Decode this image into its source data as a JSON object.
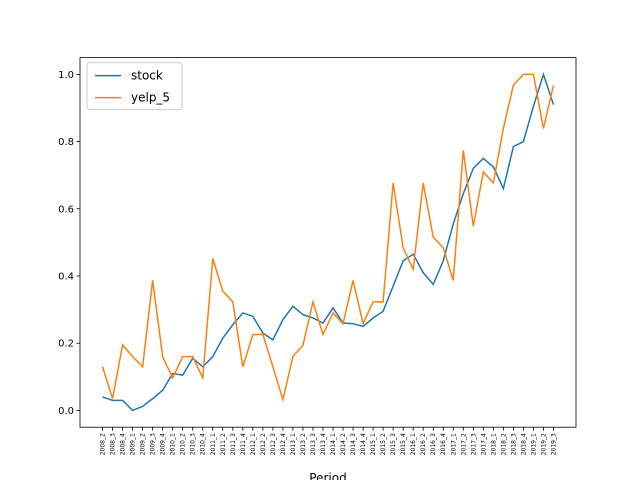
{
  "chart_data": {
    "type": "line",
    "xlabel": "Period",
    "categories": [
      "2008_2",
      "2008_3",
      "2008_4",
      "2009_1",
      "2009_2",
      "2009_3",
      "2009_4",
      "2010_1",
      "2010_2",
      "2010_3",
      "2010_4",
      "2011_1",
      "2011_2",
      "2011_3",
      "2011_4",
      "2012_1",
      "2012_2",
      "2012_3",
      "2012_4",
      "2013_1",
      "2013_2",
      "2013_3",
      "2013_4",
      "2014_1",
      "2014_2",
      "2014_3",
      "2014_4",
      "2015_1",
      "2015_2",
      "2015_3",
      "2015_4",
      "2016_1",
      "2016_2",
      "2016_3",
      "2016_4",
      "2017_1",
      "2017_2",
      "2017_3",
      "2017_4",
      "2018_1",
      "2018_2",
      "2018_3",
      "2018_4",
      "2019_1",
      "2019_2",
      "2019_3"
    ],
    "series": [
      {
        "name": "stock",
        "color": "#1f77b4",
        "values": [
          0.04,
          0.03,
          0.03,
          0.0,
          0.012,
          0.035,
          0.06,
          0.11,
          0.105,
          0.155,
          0.13,
          0.16,
          0.215,
          0.255,
          0.29,
          0.28,
          0.23,
          0.21,
          0.27,
          0.31,
          0.285,
          0.275,
          0.26,
          0.305,
          0.26,
          0.258,
          0.25,
          0.275,
          0.295,
          0.37,
          0.445,
          0.465,
          0.41,
          0.375,
          0.445,
          0.555,
          0.645,
          0.72,
          0.75,
          0.725,
          0.66,
          0.785,
          0.8,
          0.905,
          1.0,
          0.91
        ]
      },
      {
        "name": "yelp_5",
        "color": "#ff7f0e",
        "values": [
          0.13,
          0.035,
          0.195,
          0.16,
          0.13,
          0.387,
          0.16,
          0.097,
          0.16,
          0.16,
          0.097,
          0.452,
          0.355,
          0.323,
          0.13,
          0.226,
          0.226,
          0.13,
          0.032,
          0.161,
          0.194,
          0.323,
          0.226,
          0.29,
          0.258,
          0.387,
          0.258,
          0.323,
          0.323,
          0.677,
          0.484,
          0.42,
          0.677,
          0.516,
          0.484,
          0.387,
          0.774,
          0.548,
          0.71,
          0.677,
          0.839,
          0.968,
          1.0,
          1.0,
          0.839,
          0.968
        ]
      }
    ],
    "ylim": [
      -0.05,
      1.05
    ],
    "yticks": [
      {
        "value": 0,
        "label": "0.0"
      },
      {
        "value": 0.2,
        "label": "0.2"
      },
      {
        "value": 0.4,
        "label": "0.4"
      },
      {
        "value": 0.6,
        "label": "0.6"
      },
      {
        "value": 0.8,
        "label": "0.8"
      },
      {
        "value": 1,
        "label": "1.0"
      }
    ],
    "legend": "upper left"
  }
}
